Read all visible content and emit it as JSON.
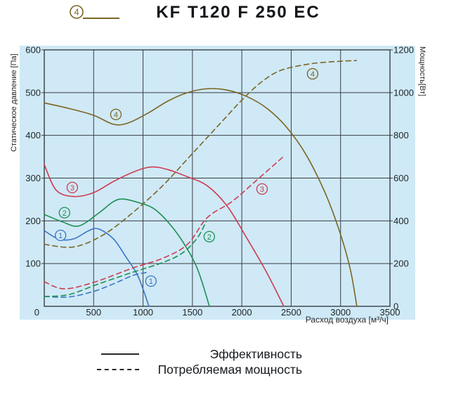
{
  "header": {
    "title": "KF T120 F 250 EC",
    "series_badge": {
      "number": "4"
    }
  },
  "colors": {
    "panel": "#cfe9f6",
    "grid": "#3a3e45",
    "axis": "#2e3237",
    "tick_text": "#1f2326",
    "olive": "#7c6524",
    "red": "#cf3b50",
    "green": "#1e8f50",
    "blue": "#3a74c4",
    "legend_line": "#26292d"
  },
  "chart_data": {
    "type": "line",
    "title": "KF T120 F 250 EC",
    "x_label": "Расход воздуха [м³/ч]",
    "y_left_label": "Статическое давление [Па]",
    "y_right_label": "Мощность[Вт]",
    "x_range": [
      0,
      3500
    ],
    "y_left_range": [
      0,
      600
    ],
    "y_right_range": [
      0,
      1200
    ],
    "x_ticks": [
      0,
      500,
      1000,
      1500,
      2000,
      2500,
      3000,
      3500
    ],
    "y_left_ticks": [
      100,
      200,
      300,
      400,
      500,
      600
    ],
    "y_right_ticks": [
      0,
      200,
      400,
      600,
      800,
      1000,
      1200
    ],
    "grid": true,
    "legend_position": "bottom",
    "series": [
      {
        "id": "curve-1-pressure",
        "number": "1",
        "axis": "left",
        "style": "solid",
        "color": "#3a74c4",
        "points": [
          [
            0,
            177
          ],
          [
            150,
            157
          ],
          [
            300,
            158
          ],
          [
            450,
            177
          ],
          [
            550,
            181
          ],
          [
            700,
            158
          ],
          [
            820,
            118
          ],
          [
            950,
            70
          ],
          [
            1060,
            0
          ]
        ],
        "marker": {
          "x": 165,
          "y": 166
        }
      },
      {
        "id": "curve-2-pressure",
        "number": "2",
        "axis": "left",
        "style": "solid",
        "color": "#1e8f50",
        "points": [
          [
            0,
            215
          ],
          [
            180,
            198
          ],
          [
            350,
            188
          ],
          [
            550,
            218
          ],
          [
            700,
            245
          ],
          [
            800,
            251
          ],
          [
            950,
            243
          ],
          [
            1100,
            230
          ],
          [
            1250,
            198
          ],
          [
            1400,
            152
          ],
          [
            1550,
            88
          ],
          [
            1672,
            0
          ]
        ],
        "marker": {
          "x": 205,
          "y": 219
        }
      },
      {
        "id": "curve-3-pressure",
        "number": "3",
        "axis": "left",
        "style": "solid",
        "color": "#cf3b50",
        "points": [
          [
            0,
            332
          ],
          [
            120,
            272
          ],
          [
            300,
            257
          ],
          [
            500,
            266
          ],
          [
            700,
            292
          ],
          [
            900,
            314
          ],
          [
            1080,
            326
          ],
          [
            1250,
            320
          ],
          [
            1450,
            303
          ],
          [
            1650,
            282
          ],
          [
            1850,
            235
          ],
          [
            2050,
            160
          ],
          [
            2250,
            80
          ],
          [
            2425,
            0
          ]
        ],
        "marker": {
          "x": 284,
          "y": 278
        }
      },
      {
        "id": "curve-4-pressure",
        "number": "4",
        "axis": "left",
        "style": "solid",
        "color": "#7c6524",
        "points": [
          [
            0,
            476
          ],
          [
            250,
            463
          ],
          [
            500,
            447
          ],
          [
            700,
            426
          ],
          [
            850,
            429
          ],
          [
            1050,
            452
          ],
          [
            1250,
            480
          ],
          [
            1450,
            500
          ],
          [
            1650,
            509
          ],
          [
            1850,
            506
          ],
          [
            2050,
            491
          ],
          [
            2250,
            464
          ],
          [
            2450,
            420
          ],
          [
            2650,
            355
          ],
          [
            2850,
            262
          ],
          [
            3000,
            168
          ],
          [
            3100,
            85
          ],
          [
            3165,
            0
          ]
        ],
        "marker": {
          "x": 725,
          "y": 449
        }
      },
      {
        "id": "curve-1-power",
        "number": "1",
        "axis": "right",
        "style": "dashed",
        "color": "#3a74c4",
        "points": [
          [
            0,
            46
          ],
          [
            250,
            44
          ],
          [
            500,
            70
          ],
          [
            700,
            105
          ],
          [
            900,
            145
          ],
          [
            1030,
            158
          ]
        ],
        "marker": {
          "x": 1080,
          "y": 118
        }
      },
      {
        "id": "curve-2-power",
        "number": "2",
        "axis": "right",
        "style": "dashed",
        "color": "#1e8f50",
        "points": [
          [
            0,
            46
          ],
          [
            250,
            55
          ],
          [
            550,
            105
          ],
          [
            900,
            160
          ],
          [
            1200,
            205
          ],
          [
            1400,
            250
          ],
          [
            1550,
            320
          ],
          [
            1640,
            398
          ]
        ],
        "marker": {
          "x": 1671,
          "y": 326
        }
      },
      {
        "id": "curve-3-power",
        "number": "3",
        "axis": "right",
        "style": "dashed",
        "color": "#cf3b50",
        "points": [
          [
            0,
            115
          ],
          [
            200,
            82
          ],
          [
            500,
            112
          ],
          [
            900,
            180
          ],
          [
            1200,
            225
          ],
          [
            1450,
            290
          ],
          [
            1650,
            415
          ],
          [
            1900,
            490
          ],
          [
            2150,
            590
          ],
          [
            2420,
            700
          ]
        ],
        "marker": {
          "x": 2205,
          "y": 549
        }
      },
      {
        "id": "curve-4-power",
        "number": "4",
        "axis": "right",
        "style": "dashed",
        "color": "#7c6524",
        "points": [
          [
            0,
            290
          ],
          [
            300,
            278
          ],
          [
            600,
            335
          ],
          [
            900,
            440
          ],
          [
            1200,
            565
          ],
          [
            1500,
            715
          ],
          [
            1800,
            865
          ],
          [
            2000,
            965
          ],
          [
            2200,
            1050
          ],
          [
            2400,
            1105
          ],
          [
            2700,
            1135
          ],
          [
            3000,
            1147
          ],
          [
            3160,
            1150
          ]
        ],
        "marker": {
          "x": 2717,
          "y": 1088
        }
      }
    ]
  },
  "legend": {
    "items": [
      {
        "style": "solid",
        "label": "Эффективность"
      },
      {
        "style": "dashed",
        "label": "Потребляемая мощность"
      }
    ]
  }
}
